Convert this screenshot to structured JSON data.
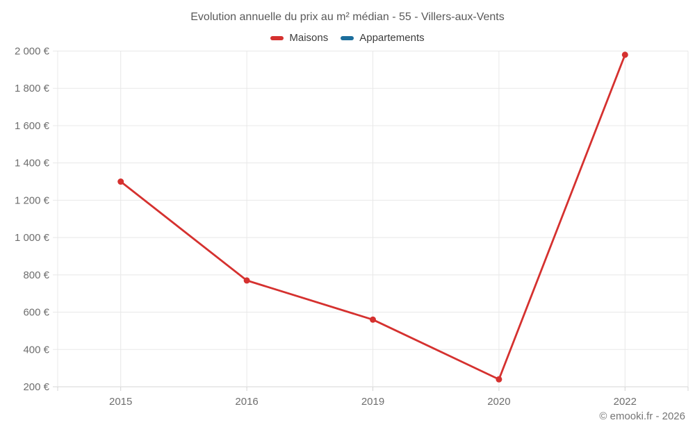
{
  "page": {
    "title": "Evolution annuelle du prix au m² médian - 55 - Villers-aux-Vents",
    "footer": "© emooki.fr - 2026"
  },
  "chart_data": {
    "type": "line",
    "title": "Evolution annuelle du prix au m² médian - 55 - Villers-aux-Vents",
    "categories": [
      "2015",
      "2016",
      "2019",
      "2020",
      "2022"
    ],
    "series": [
      {
        "name": "Maisons",
        "color": "#d5312f",
        "values": [
          1300,
          770,
          560,
          240,
          1980
        ]
      },
      {
        "name": "Appartements",
        "color": "#1c6e9c",
        "values": []
      }
    ],
    "xlabel": "",
    "ylabel": "",
    "ylim": [
      200,
      2000
    ],
    "y_tick_step": 200,
    "y_tick_labels": [
      "200 €",
      "400 €",
      "600 €",
      "800 €",
      "1 000 €",
      "1 200 €",
      "1 400 €",
      "1 600 €",
      "1 800 €",
      "2 000 €"
    ],
    "currency_suffix": "€",
    "grid": true,
    "legend_position": "top",
    "footer": "© emooki.fr - 2026"
  }
}
